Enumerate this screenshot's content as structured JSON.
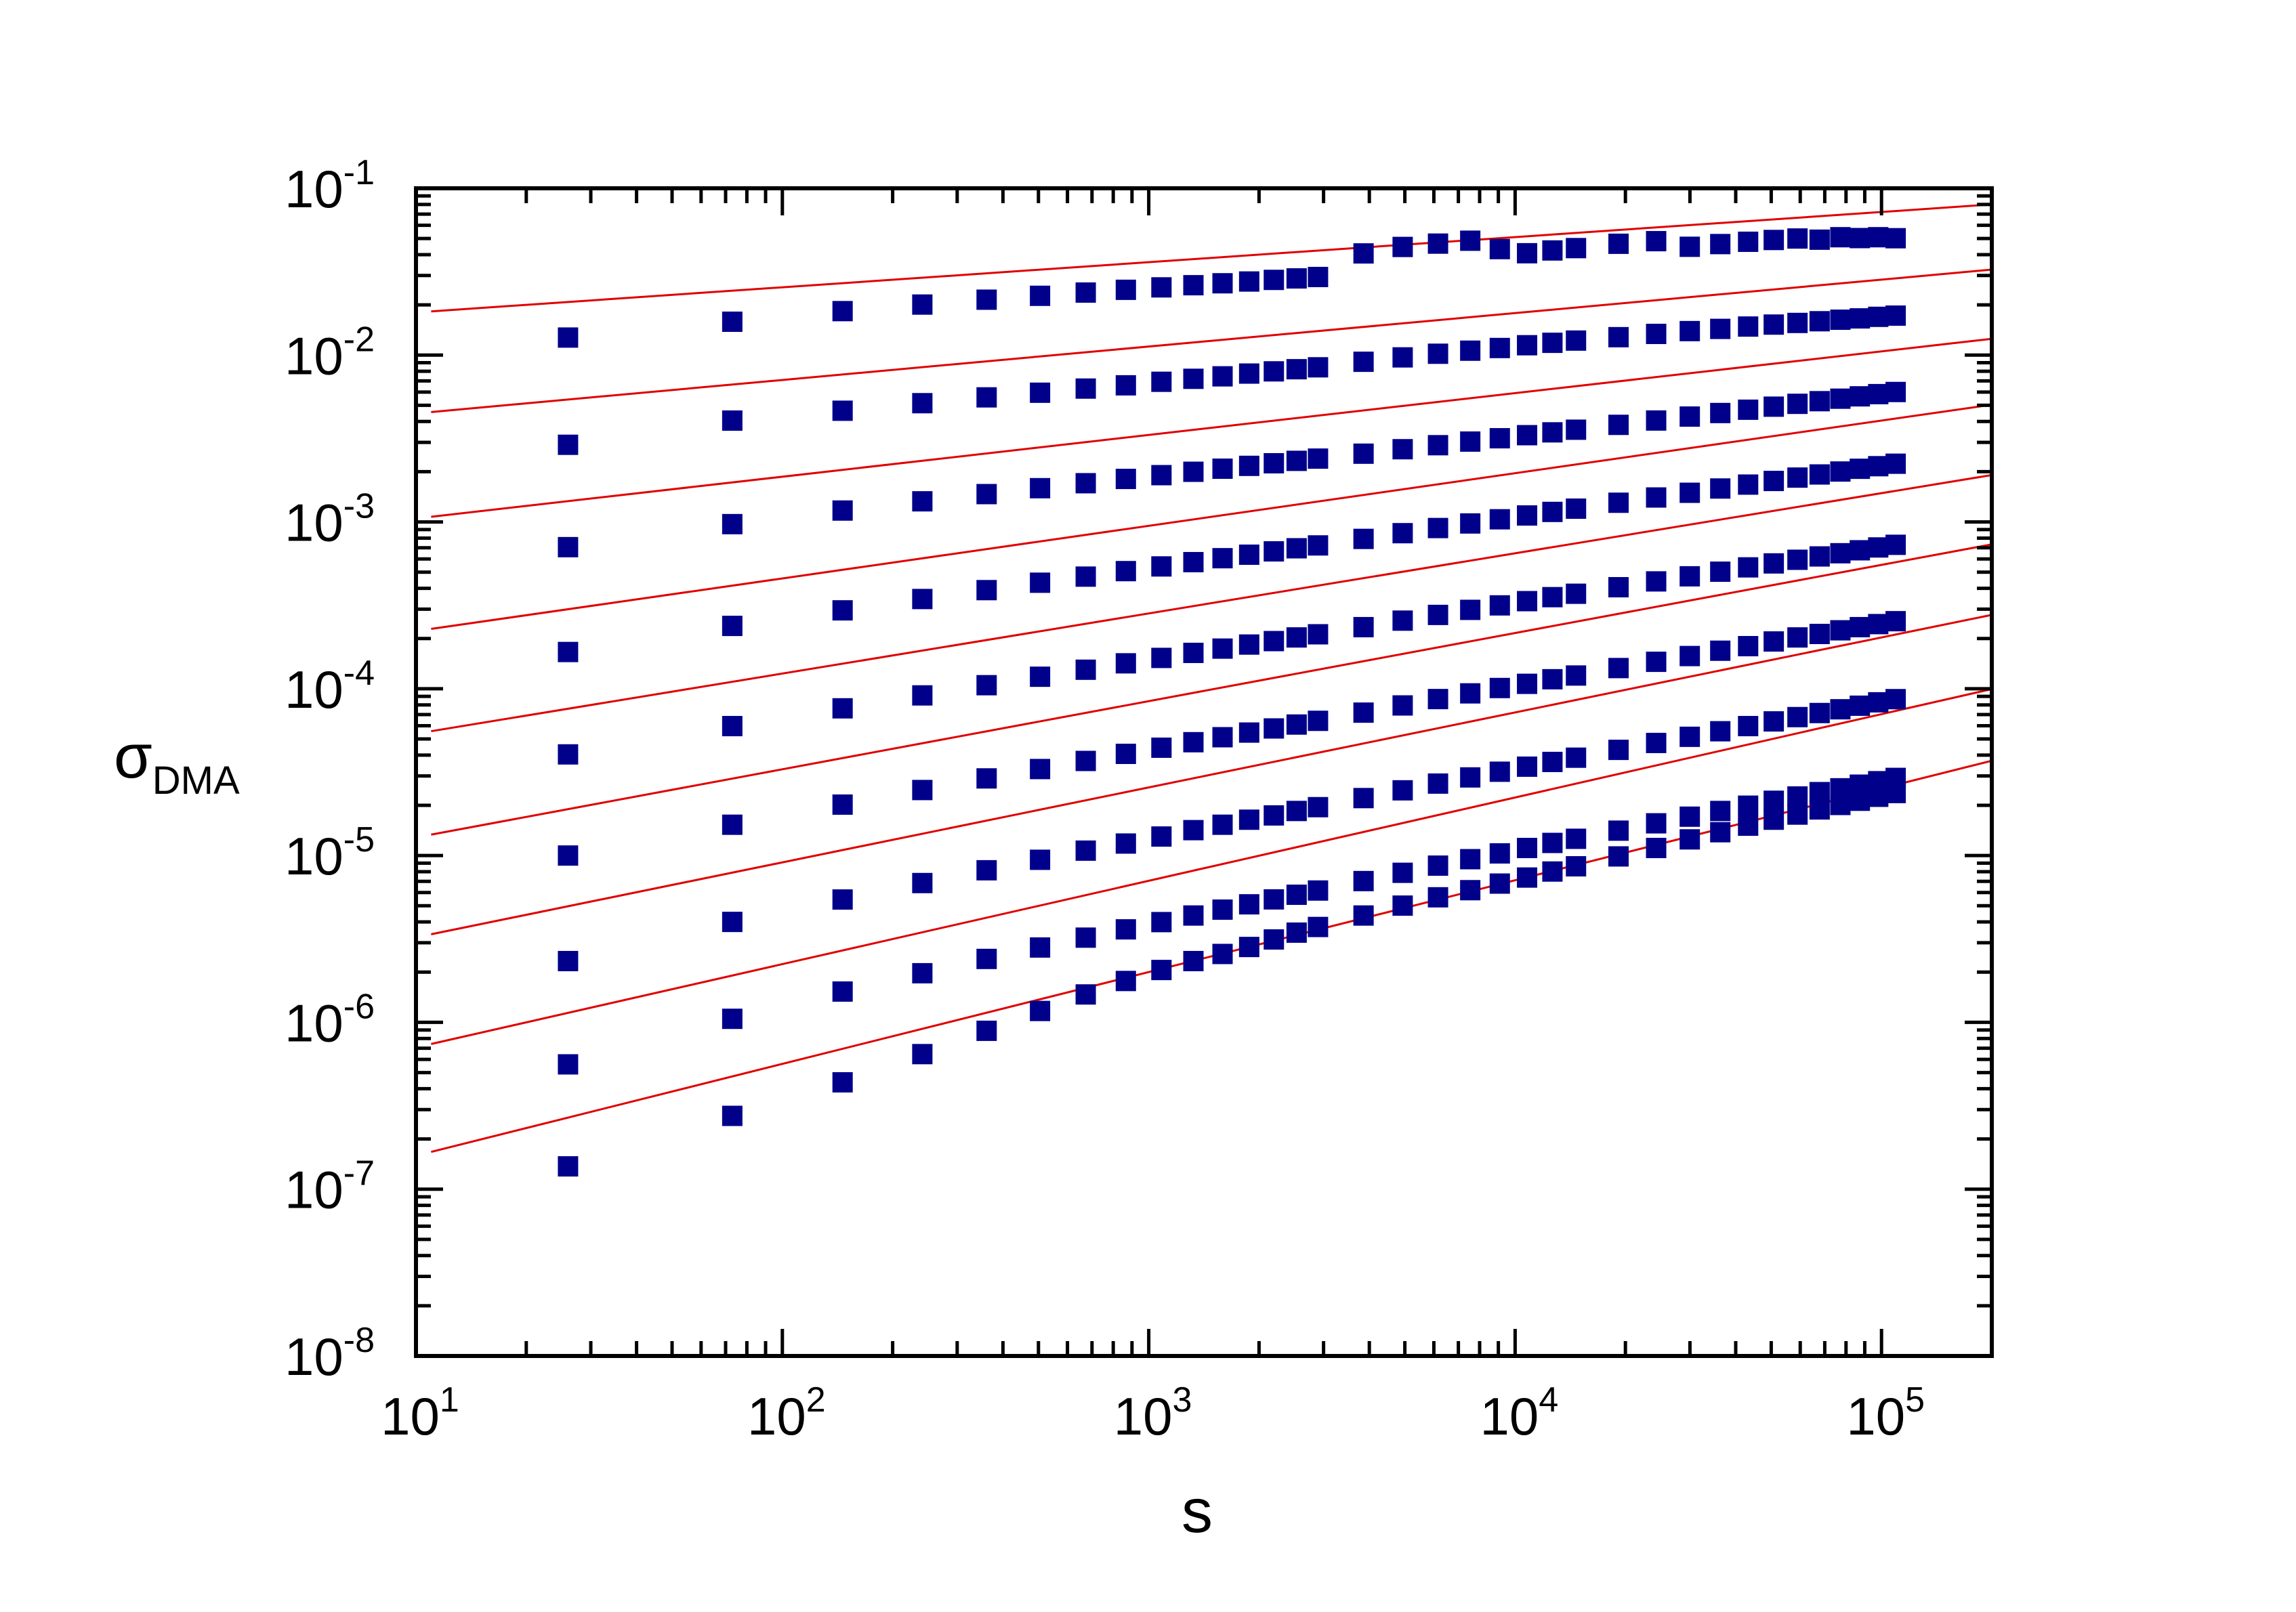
{
  "chart_data": {
    "type": "scatter",
    "title": "",
    "xlabel": "s",
    "ylabel": {
      "symbol": "σ",
      "subscript": "DMA"
    },
    "x_scale": "log",
    "y_scale": "log",
    "xlim": [
      10,
      200000
    ],
    "ylim": [
      1e-08,
      0.1
    ],
    "grid": false,
    "legend": "none",
    "x_ticks": [
      {
        "value": 10,
        "base": "10",
        "exp": "1"
      },
      {
        "value": 100,
        "base": "10",
        "exp": "2"
      },
      {
        "value": 1000,
        "base": "10",
        "exp": "3"
      },
      {
        "value": 10000,
        "base": "10",
        "exp": "4"
      },
      {
        "value": 100000,
        "base": "10",
        "exp": "5"
      }
    ],
    "y_ticks": [
      {
        "value": 1e-08,
        "base": "10",
        "exp": "-8"
      },
      {
        "value": 1e-07,
        "base": "10",
        "exp": "-7"
      },
      {
        "value": 1e-06,
        "base": "10",
        "exp": "-6"
      },
      {
        "value": 1e-05,
        "base": "10",
        "exp": "-5"
      },
      {
        "value": 0.0001,
        "base": "10",
        "exp": "-4"
      },
      {
        "value": 0.001,
        "base": "10",
        "exp": "-3"
      },
      {
        "value": 0.01,
        "base": "10",
        "exp": "-2"
      },
      {
        "value": 0.1,
        "base": "10",
        "exp": "-1"
      }
    ],
    "x": [
      26,
      73,
      146,
      241,
      361,
      505,
      673,
      866,
      1083,
      1324,
      1590,
      1880,
      2195,
      2533,
      2897,
      3857,
      4932,
      6159,
      7542,
      9082,
      10780,
      12640,
      14660,
      19150,
      24260,
      29970,
      36300,
      43240,
      50800,
      58970,
      67780,
      77210,
      87260,
      97950,
      109300
    ],
    "series": [
      {
        "marker_color": "#00008b",
        "fit_color": "#e00000",
        "fit": {
          "a": 0.01275,
          "b": 0.1505
        },
        "y": [
          0.01274,
          0.01585,
          0.01835,
          0.02009,
          0.02149,
          0.02267,
          0.02371,
          0.02463,
          0.02547,
          0.02624,
          0.02695,
          0.02762,
          0.02824,
          0.02883,
          0.02939,
          0.0407,
          0.0445,
          0.0466,
          0.0485,
          0.0432,
          0.0408,
          0.0424,
          0.0438,
          0.0465,
          0.0482,
          0.0446,
          0.0463,
          0.0478,
          0.049,
          0.05,
          0.0492,
          0.0509,
          0.0503,
          0.0509,
          0.0502
        ]
      },
      {
        "marker_color": "#00008b",
        "fit_color": "#e00000",
        "fit": {
          "a": 0.002818,
          "b": 0.2005
        },
        "y": [
          0.0029,
          0.00405,
          0.00464,
          0.00515,
          0.00558,
          0.00595,
          0.0063,
          0.00659,
          0.00692,
          0.00721,
          0.00746,
          0.00775,
          0.00799,
          0.00823,
          0.00845,
          0.00912,
          0.00969,
          0.01019,
          0.01063,
          0.01103,
          0.01146,
          0.01185,
          0.01222,
          0.01281,
          0.0134,
          0.01393,
          0.01436,
          0.01483,
          0.01524,
          0.01559,
          0.01596,
          0.0163,
          0.0166,
          0.01696,
          0.01725
        ]
      },
      {
        "marker_color": "#00008b",
        "fit_color": "#e00000",
        "fit": {
          "a": 0.0005888,
          "b": 0.2505
        },
        "y": [
          0.000706,
          0.00097,
          0.00117,
          0.001329,
          0.001468,
          0.001593,
          0.001706,
          0.00181,
          0.001907,
          0.001998,
          0.002085,
          0.002168,
          0.002247,
          0.002323,
          0.002396,
          0.002565,
          0.002728,
          0.002883,
          0.003031,
          0.003174,
          0.003311,
          0.003443,
          0.003571,
          0.003818,
          0.004054,
          0.00428,
          0.004496,
          0.004706,
          0.004908,
          0.005104,
          0.005294,
          0.00548,
          0.00566,
          0.005836,
          0.006009
        ]
      },
      {
        "marker_color": "#00008b",
        "fit_color": "#e00000",
        "fit": {
          "a": 0.0001072,
          "b": 0.3155
        },
        "y": [
          0.000166,
          0.000238,
          0.000295,
          0.000345,
          0.00039,
          0.000432,
          0.00047,
          0.000507,
          0.000541,
          0.000574,
          0.000606,
          0.000636,
          0.000666,
          0.000695,
          0.000723,
          0.000791,
          0.000856,
          0.000919,
          0.000979,
          0.001037,
          0.001093,
          0.001148,
          0.001201,
          0.001303,
          0.001401,
          0.001495,
          0.001586,
          0.001674,
          0.00176,
          0.001844,
          0.001925,
          0.002005,
          0.002082,
          0.002158,
          0.002233
        ]
      },
      {
        "marker_color": "#00008b",
        "fit_color": "#e00000",
        "fit": {
          "a": 2.344e-05,
          "b": 0.3605
        },
        "y": [
          4.04e-05,
          5.97e-05,
          7.63e-05,
          9.12e-05,
          0.000105,
          0.000118,
          0.00013,
          0.000142,
          0.000153,
          0.000164,
          0.000174,
          0.000184,
          0.000193,
          0.000203,
          0.000212,
          0.000234,
          0.000256,
          0.000277,
          0.000297,
          0.000316,
          0.000335,
          0.000354,
          0.000371,
          0.000406,
          0.00044,
          0.000472,
          0.000503,
          0.000534,
          0.000564,
          0.000593,
          0.000621,
          0.000649,
          0.000676,
          0.000703,
          0.000729
        ]
      },
      {
        "marker_color": "#00008b",
        "fit_color": "#e00000",
        "fit": {
          "a": 5.012e-06,
          "b": 0.4085
        },
        "y": [
          1e-05,
          1.53e-05,
          2.02e-05,
          2.47e-05,
          2.9e-05,
          3.3e-05,
          3.69e-05,
          4.07e-05,
          4.43e-05,
          4.78e-05,
          5.12e-05,
          5.46e-05,
          5.78e-05,
          6.1e-05,
          6.42e-05,
          7.19e-05,
          7.94e-05,
          8.67e-05,
          9.38e-05,
          0.000101,
          0.000107,
          0.000114,
          0.00012,
          0.000133,
          0.000145,
          0.000157,
          0.000169,
          0.00018,
          0.000192,
          0.000203,
          0.000213,
          0.000224,
          0.000234,
          0.000244,
          0.000254
        ]
      },
      {
        "marker_color": "#00008b",
        "fit_color": "#e00000",
        "fit": {
          "a": 1.148e-06,
          "b": 0.4495
        },
        "y": [
          2.33e-06,
          4e-06,
          5.45e-06,
          6.84e-06,
          8.16e-06,
          9.43e-06,
          1.07e-05,
          1.18e-05,
          1.3e-05,
          1.42e-05,
          1.53e-05,
          1.64e-05,
          1.74e-05,
          1.85e-05,
          1.95e-05,
          2.21e-05,
          2.46e-05,
          2.7e-05,
          2.94e-05,
          3.18e-05,
          3.41e-05,
          3.64e-05,
          3.86e-05,
          4.3e-05,
          4.73e-05,
          5.15e-05,
          5.56e-05,
          5.97e-05,
          6.37e-05,
          6.76e-05,
          7.15e-05,
          7.53e-05,
          7.91e-05,
          8.29e-05,
          8.66e-05
        ]
      },
      {
        "marker_color": "#00008b",
        "fit_color": "#e00000",
        "fit": {
          "a": 2.239e-07,
          "b": 0.4995
        },
        "y": [
          5.6e-07,
          1.05e-06,
          1.53e-06,
          1.97e-06,
          2.4e-06,
          2.81e-06,
          3.22e-06,
          3.61e-06,
          3.99e-06,
          4.37e-06,
          4.74e-06,
          5.1e-06,
          5.46e-06,
          5.82e-06,
          6.17e-06,
          7.03e-06,
          7.88e-06,
          8.7e-06,
          9.51e-06,
          1.03e-05,
          1.11e-05,
          1.19e-05,
          1.26e-05,
          1.41e-05,
          1.56e-05,
          1.71e-05,
          1.85e-05,
          1.99e-05,
          2.13e-05,
          2.26e-05,
          2.4e-05,
          2.53e-05,
          2.66e-05,
          2.79e-05,
          2.92e-05
        ]
      },
      {
        "marker_color": "#00008b",
        "fit_color": "#e00000",
        "fit": {
          "a": 4.467e-08,
          "b": 0.5505
        },
        "y": [
          1.37e-07,
          2.75e-07,
          4.37e-07,
          6.45e-07,
          8.9e-07,
          1.17e-06,
          1.47e-06,
          1.77e-06,
          2.06e-06,
          2.33e-06,
          2.57e-06,
          2.83e-06,
          3.14e-06,
          3.45e-06,
          3.73e-06,
          4.37e-06,
          5.01e-06,
          5.62e-06,
          6.2e-06,
          6.79e-06,
          7.38e-06,
          8.02e-06,
          8.62e-06,
          9.88e-06,
          1.11e-05,
          1.25e-05,
          1.38e-05,
          1.51e-05,
          1.64e-05,
          1.76e-05,
          1.89e-05,
          2.01e-05,
          2.13e-05,
          2.25e-05,
          2.37e-05
        ]
      }
    ]
  }
}
